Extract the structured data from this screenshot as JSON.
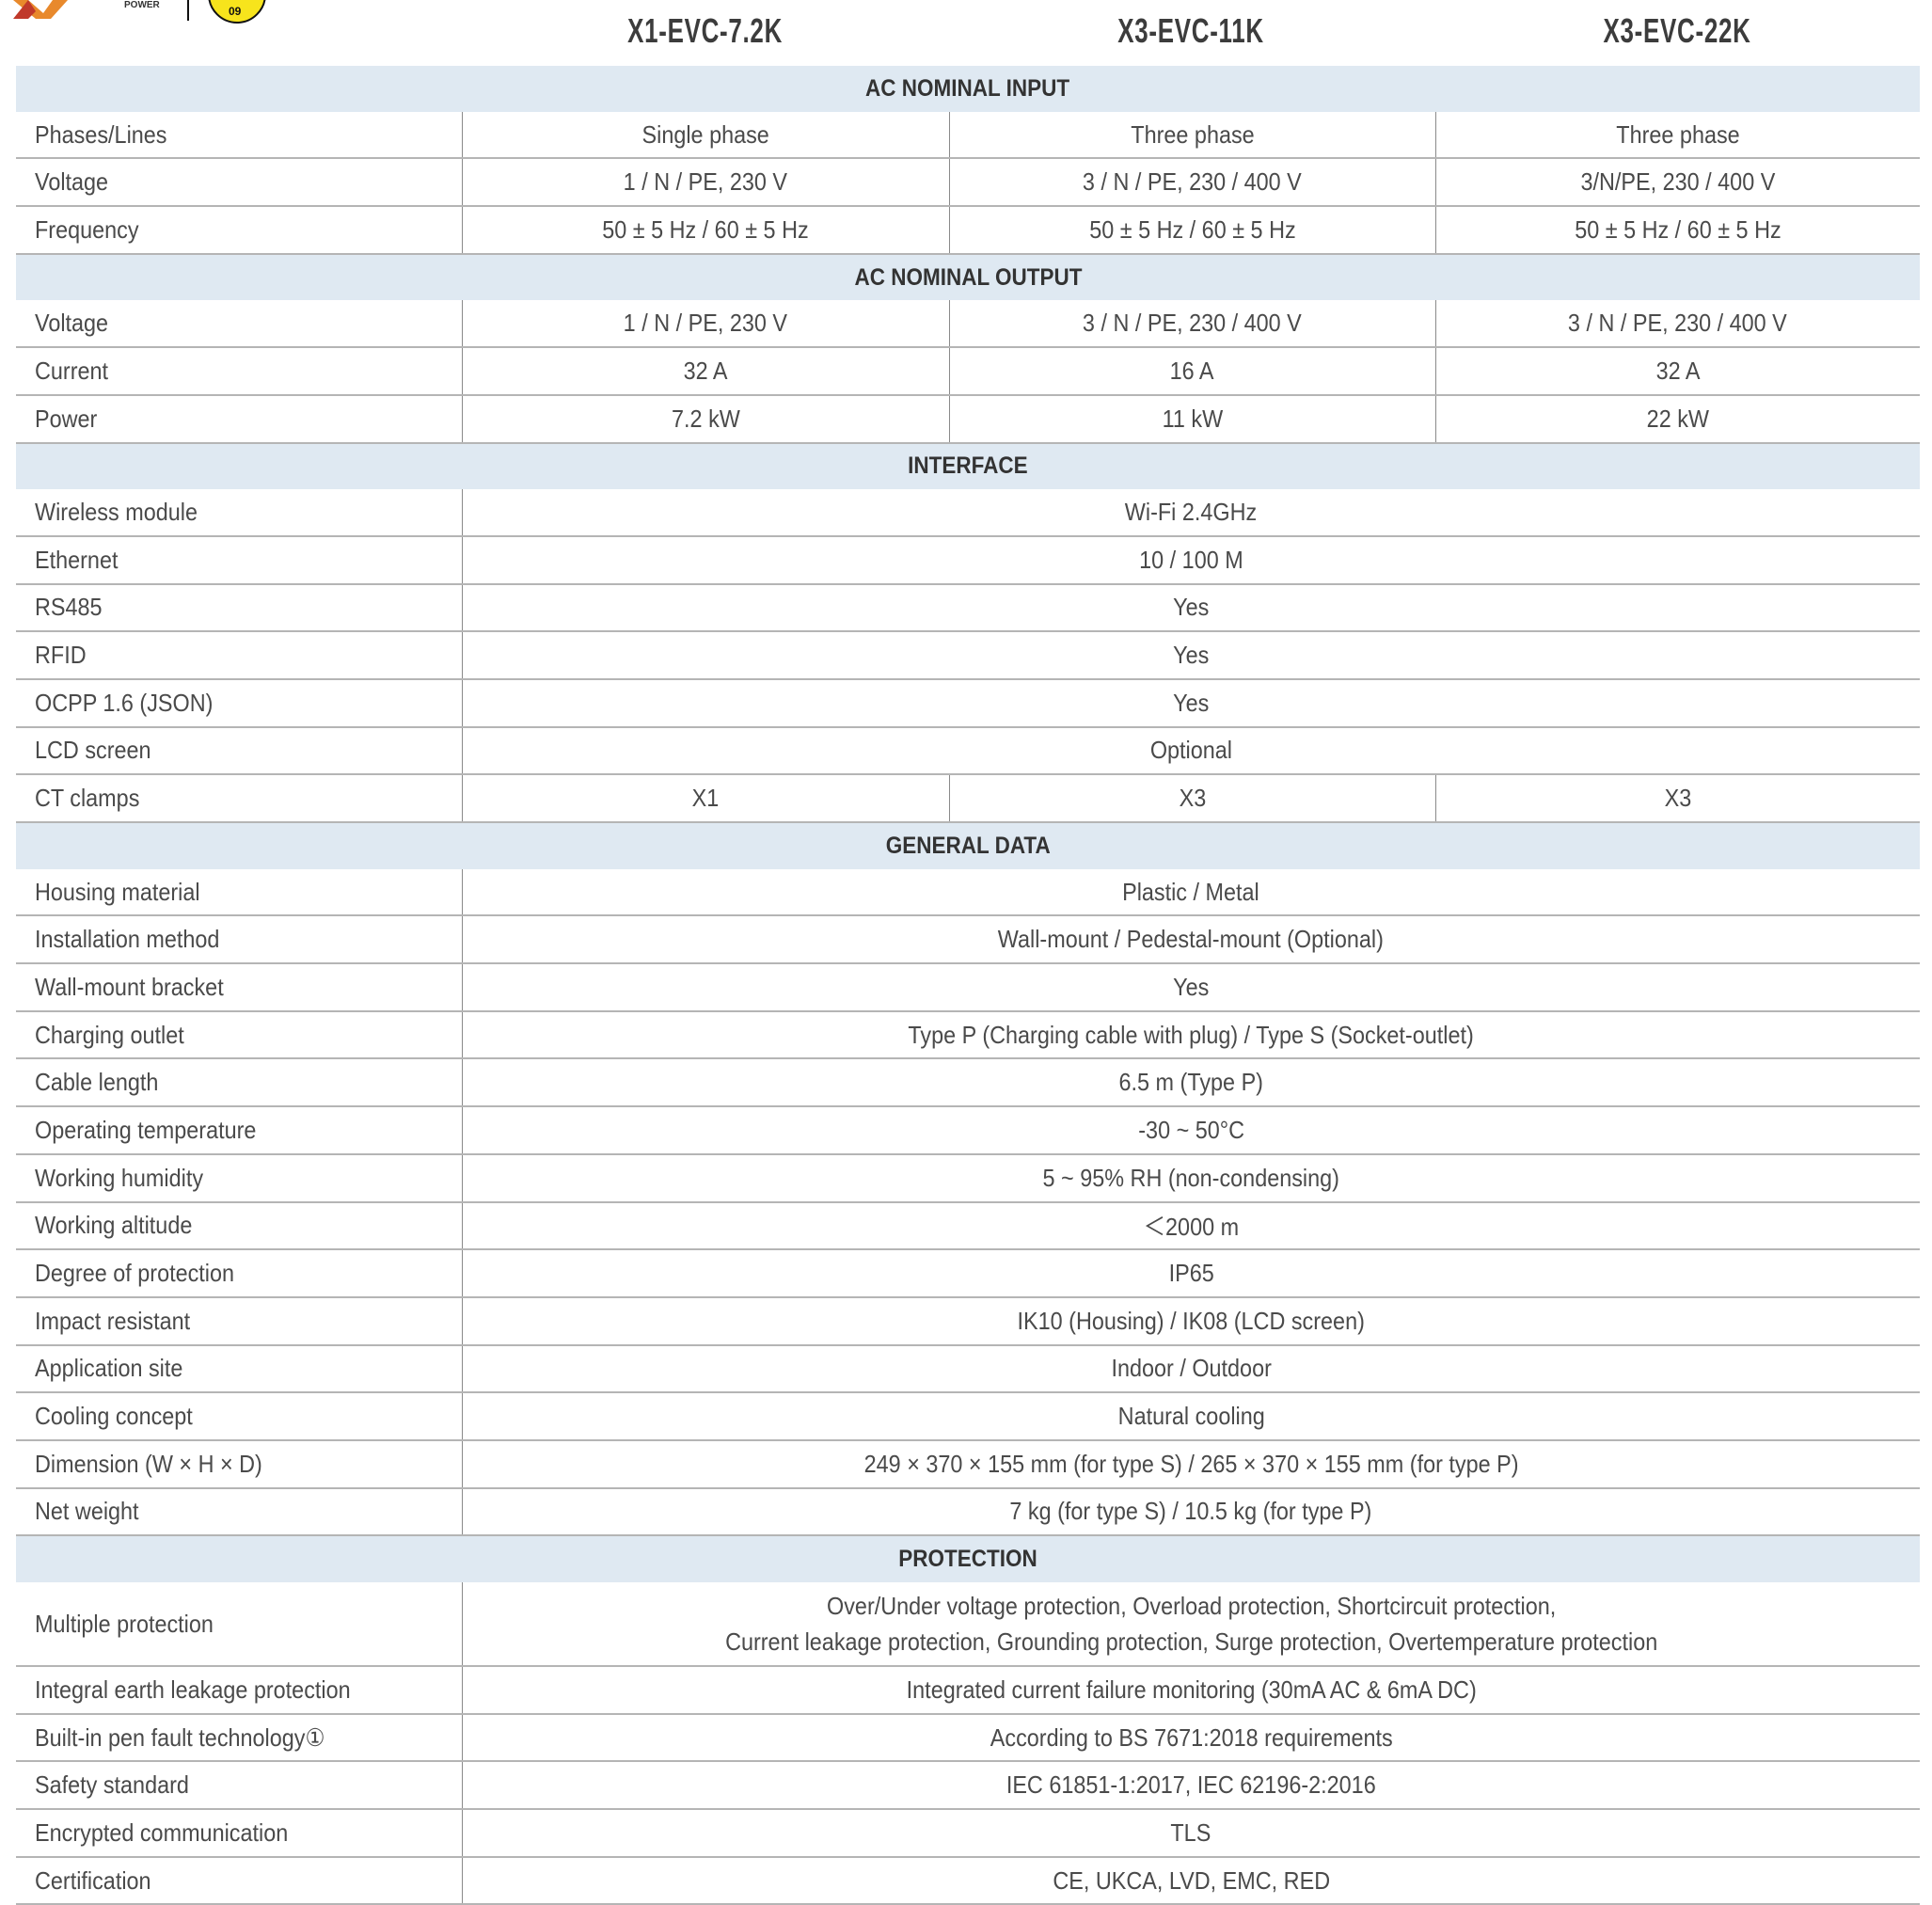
{
  "logo": {
    "brand_text": "POWER",
    "badge_text": "09",
    "colors": {
      "orange": "#e8892c",
      "yellow": "#f7e41c"
    }
  },
  "models": [
    "X1-EVC-7.2K",
    "X3-EVC-11K",
    "X3-EVC-22K"
  ],
  "colors": {
    "section_bg": "#dfe9f2",
    "text": "#4a4a4a"
  },
  "sections": [
    {
      "title": "AC NOMINAL INPUT",
      "rows": [
        {
          "label": "Phases/Lines",
          "values": [
            "Single phase",
            "Three phase",
            "Three phase"
          ]
        },
        {
          "label": "Voltage",
          "values": [
            "1 / N / PE, 230 V",
            "3 / N / PE, 230 / 400 V",
            "3/N/PE, 230 / 400 V"
          ]
        },
        {
          "label": "Frequency",
          "values": [
            "50 ± 5 Hz / 60 ± 5 Hz",
            "50 ± 5 Hz / 60 ± 5 Hz",
            "50 ± 5 Hz / 60 ± 5 Hz"
          ]
        }
      ]
    },
    {
      "title": "AC NOMINAL OUTPUT",
      "rows": [
        {
          "label": "Voltage",
          "values": [
            "1 / N / PE, 230 V",
            "3 / N / PE, 230 / 400 V",
            "3 / N / PE, 230 / 400 V"
          ]
        },
        {
          "label": "Current",
          "values": [
            "32 A",
            "16 A",
            "32 A"
          ]
        },
        {
          "label": "Power",
          "values": [
            "7.2 kW",
            "11 kW",
            "22 kW"
          ]
        }
      ]
    },
    {
      "title": "INTERFACE",
      "rows": [
        {
          "label": "Wireless module",
          "values": [
            "Wi-Fi 2.4GHz"
          ]
        },
        {
          "label": "Ethernet",
          "values": [
            "10 / 100 M"
          ]
        },
        {
          "label": "RS485",
          "values": [
            "Yes"
          ]
        },
        {
          "label": "RFID",
          "values": [
            "Yes"
          ]
        },
        {
          "label": "OCPP 1.6 (JSON)",
          "values": [
            "Yes"
          ]
        },
        {
          "label": "LCD screen",
          "values": [
            "Optional"
          ]
        },
        {
          "label": "CT clamps",
          "values": [
            "X1",
            "X3",
            "X3"
          ]
        }
      ]
    },
    {
      "title": "GENERAL DATA",
      "rows": [
        {
          "label": "Housing material",
          "values": [
            "Plastic / Metal"
          ]
        },
        {
          "label": "Installation method",
          "values": [
            "Wall-mount / Pedestal-mount (Optional)"
          ]
        },
        {
          "label": "Wall-mount bracket",
          "values": [
            "Yes"
          ]
        },
        {
          "label": "Charging outlet",
          "values": [
            "Type P (Charging cable with plug) / Type S (Socket-outlet)"
          ]
        },
        {
          "label": "Cable length",
          "values": [
            "6.5 m (Type P)"
          ]
        },
        {
          "label": "Operating temperature",
          "values": [
            "-30 ~ 50°C"
          ]
        },
        {
          "label": "Working humidity",
          "values": [
            "5 ~ 95% RH (non-condensing)"
          ]
        },
        {
          "label": "Working altitude",
          "values": [
            "＜2000 m"
          ]
        },
        {
          "label": "Degree of protection",
          "values": [
            "IP65"
          ]
        },
        {
          "label": "Impact resistant",
          "values": [
            "IK10 (Housing) / IK08 (LCD screen)"
          ]
        },
        {
          "label": "Application site",
          "values": [
            "Indoor / Outdoor"
          ]
        },
        {
          "label": "Cooling concept",
          "values": [
            "Natural cooling"
          ]
        },
        {
          "label": "Dimension (W × H × D)",
          "values": [
            "249 × 370 × 155 mm (for type S) / 265 × 370 × 155 mm (for type P)"
          ]
        },
        {
          "label": "Net weight",
          "values": [
            "7 kg (for type S) / 10.5 kg (for type P)"
          ]
        }
      ]
    },
    {
      "title": "PROTECTION",
      "rows": [
        {
          "label": "Multiple protection",
          "values": [
            "Over/Under voltage protection, Overload protection, Shortcircuit protection,\nCurrent leakage protection, Grounding protection, Surge protection, Overtemperature protection"
          ],
          "tall": true
        },
        {
          "label": "Integral earth leakage protection",
          "values": [
            "Integrated current failure monitoring (30mA AC & 6mA DC)"
          ]
        },
        {
          "label": "Built-in pen fault technology①",
          "values": [
            "According to BS 7671:2018 requirements"
          ]
        },
        {
          "label": "Safety standard",
          "values": [
            "IEC 61851-1:2017, IEC 62196-2:2016"
          ]
        },
        {
          "label": "Encrypted communication",
          "values": [
            "TLS"
          ]
        },
        {
          "label": "Certification",
          "values": [
            "CE, UKCA, LVD, EMC, RED"
          ]
        }
      ]
    }
  ]
}
